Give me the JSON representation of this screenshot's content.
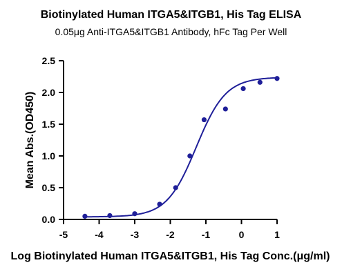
{
  "chart_data": {
    "type": "scatter",
    "title": "Biotinylated Human ITGA5&ITGB1, His Tag ELISA",
    "subtitle": "0.05μg Anti-ITGA5&ITGB1 Antibody, hFc Tag Per Well",
    "xlabel": "Log Biotinylated Human ITGA5&ITGB1, His Tag Conc.(μg/ml)",
    "ylabel": "Mean Abs.(OD450)",
    "xlim": [
      -5,
      1
    ],
    "ylim": [
      0,
      2.5
    ],
    "xticks": [
      "-5",
      "-4",
      "-3",
      "-2",
      "-1",
      "0",
      "1"
    ],
    "yticks": [
      "0.0",
      "0.5",
      "1.0",
      "1.5",
      "2.0",
      "2.5"
    ],
    "grid": false,
    "colors": {
      "series": "#1f1f99"
    },
    "series": [
      {
        "x": [
          -4.4,
          -3.7,
          -3.0,
          -2.3,
          -1.85,
          -1.45,
          -1.05,
          -0.45,
          0.05,
          0.52,
          1.0
        ],
        "y": [
          0.05,
          0.06,
          0.09,
          0.24,
          0.5,
          1.0,
          1.57,
          1.74,
          2.06,
          2.16,
          2.22
        ]
      }
    ],
    "fit_curve": {
      "bottom": 0.04,
      "top": 2.24,
      "logEC50": -1.27,
      "hill": 1.05
    }
  }
}
